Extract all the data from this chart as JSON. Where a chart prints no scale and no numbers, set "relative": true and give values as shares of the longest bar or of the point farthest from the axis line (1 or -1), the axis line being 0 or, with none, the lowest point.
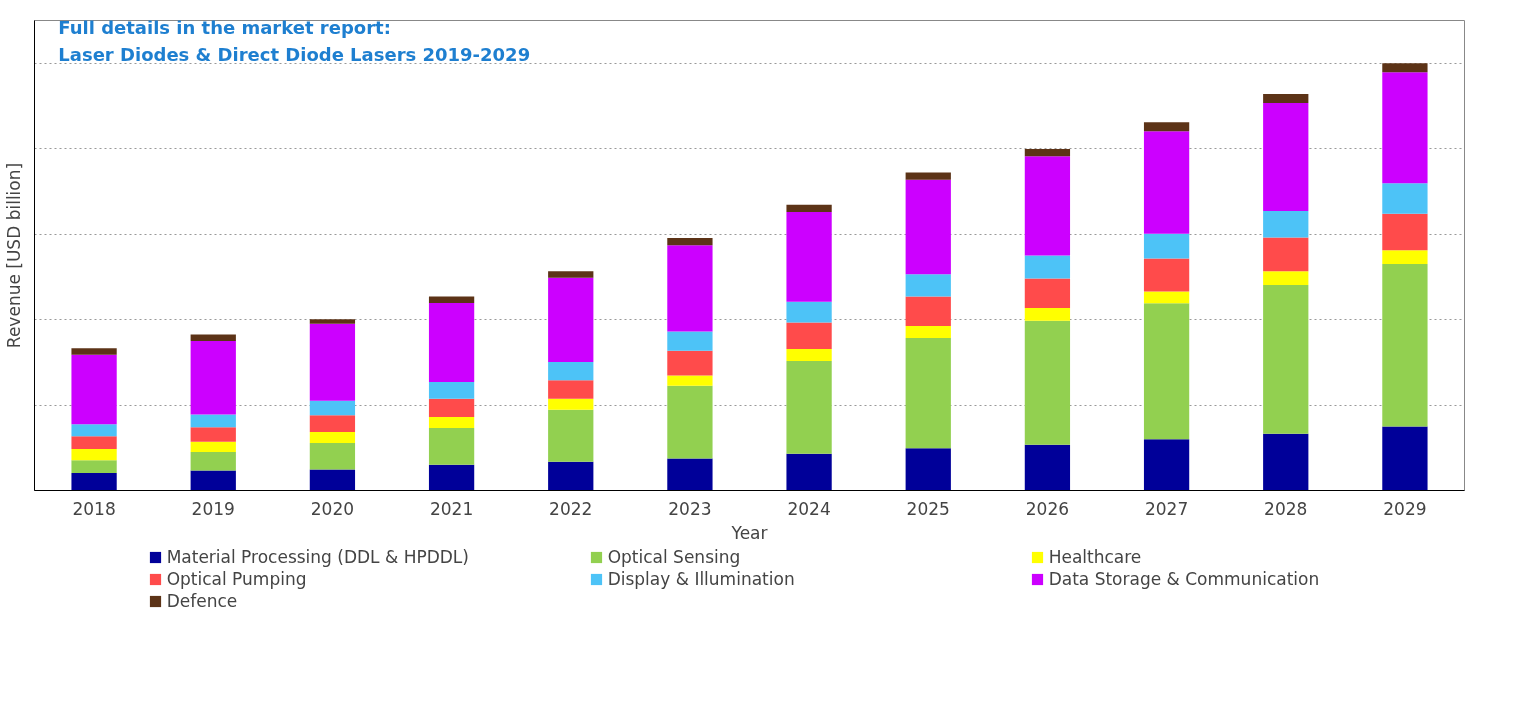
{
  "chart_data": {
    "type": "bar",
    "stacked": true,
    "relative": true,
    "xlabel": "Year",
    "ylabel": "Revenue [USD billion]",
    "annotations": [
      "Full details in the market report:",
      "Laser Diodes & Direct Diode Lasers 2019-2029"
    ],
    "categories": [
      "2018",
      "2019",
      "2020",
      "2021",
      "2022",
      "2023",
      "2024",
      "2025",
      "2026",
      "2027",
      "2028",
      "2029"
    ],
    "series": [
      {
        "name": "Material Processing (DDL & HPDDL)",
        "color": "#000099",
        "values": [
          0.041,
          0.047,
          0.049,
          0.06,
          0.067,
          0.075,
          0.086,
          0.099,
          0.107,
          0.12,
          0.133,
          0.15
        ]
      },
      {
        "name": "Optical Sensing",
        "color": "#92d050",
        "values": [
          0.03,
          0.043,
          0.062,
          0.086,
          0.122,
          0.17,
          0.217,
          0.258,
          0.29,
          0.318,
          0.348,
          0.38
        ]
      },
      {
        "name": "Healthcare",
        "color": "#ffff00",
        "values": [
          0.026,
          0.024,
          0.026,
          0.026,
          0.026,
          0.024,
          0.028,
          0.028,
          0.03,
          0.028,
          0.032,
          0.032
        ]
      },
      {
        "name": "Optical Pumping",
        "color": "#ff4b4b",
        "values": [
          0.03,
          0.034,
          0.039,
          0.043,
          0.043,
          0.058,
          0.062,
          0.069,
          0.069,
          0.077,
          0.079,
          0.086
        ]
      },
      {
        "name": "Display & Illumination",
        "color": "#4dc3f7",
        "values": [
          0.028,
          0.03,
          0.034,
          0.039,
          0.043,
          0.045,
          0.049,
          0.052,
          0.054,
          0.058,
          0.062,
          0.071
        ]
      },
      {
        "name": "Data Storage & Communication",
        "color": "#cc00ff",
        "values": [
          0.163,
          0.172,
          0.18,
          0.185,
          0.197,
          0.202,
          0.21,
          0.221,
          0.232,
          0.24,
          0.253,
          0.26
        ]
      },
      {
        "name": "Defence",
        "color": "#5c3317",
        "values": [
          0.015,
          0.015,
          0.011,
          0.015,
          0.015,
          0.017,
          0.017,
          0.017,
          0.017,
          0.021,
          0.021,
          0.021
        ]
      }
    ],
    "grid": "y",
    "legend": "bottom"
  }
}
